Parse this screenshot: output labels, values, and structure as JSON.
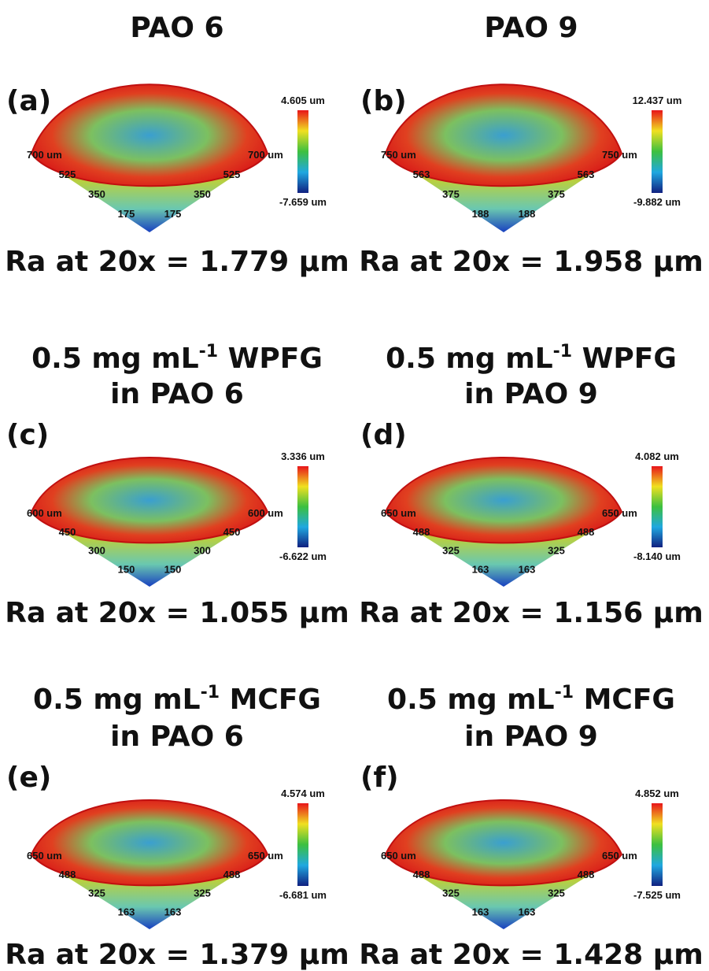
{
  "panels": [
    {
      "heading": {
        "main": "PAO 6"
      },
      "label": "(a)",
      "scale_max": "4.605 um",
      "scale_min": "-7.659 um",
      "axis_left": [
        "700 um",
        "525",
        "350",
        "175"
      ],
      "axis_right": [
        "700 um",
        "525",
        "350",
        "175"
      ],
      "ra": "Ra at 20x = 1.779 µm"
    },
    {
      "heading": {
        "main": "PAO 9"
      },
      "label": "(b)",
      "scale_max": "12.437 um",
      "scale_min": "-9.882 um",
      "axis_left": [
        "750 um",
        "563",
        "375",
        "188"
      ],
      "axis_right": [
        "750 um",
        "563",
        "375",
        "188"
      ],
      "ra": "Ra at 20x = 1.958 µm"
    },
    {
      "heading": {
        "main": "0.5 mg mL",
        "sup": "-1",
        "rest": " WPFG",
        "line2": "in PAO 6"
      },
      "label": "(c)",
      "scale_max": "3.336 um",
      "scale_min": "-6.622 um",
      "axis_left": [
        "600 um",
        "450",
        "300",
        "150"
      ],
      "axis_right": [
        "600 um",
        "450",
        "300",
        "150"
      ],
      "ra": "Ra at 20x = 1.055 µm"
    },
    {
      "heading": {
        "main": "0.5 mg mL",
        "sup": "-1",
        "rest": " WPFG",
        "line2": "in PAO 9"
      },
      "label": "(d)",
      "scale_max": "4.082 um",
      "scale_min": "-8.140 um",
      "axis_left": [
        "650 um",
        "488",
        "325",
        "163"
      ],
      "axis_right": [
        "650 um",
        "488",
        "325",
        "163"
      ],
      "ra": "Ra at 20x = 1.156 µm"
    },
    {
      "heading": {
        "main": "0.5 mg mL",
        "sup": "-1",
        "rest": " MCFG",
        "line2": "in PAO 6"
      },
      "label": "(e)",
      "scale_max": "4.574 um",
      "scale_min": "-6.681 um",
      "axis_left": [
        "650 um",
        "488",
        "325",
        "163"
      ],
      "axis_right": [
        "650 um",
        "488",
        "325",
        "163"
      ],
      "ra": "Ra at 20x = 1.379 µm"
    },
    {
      "heading": {
        "main": "0.5 mg mL",
        "sup": "-1",
        "rest": " MCFG",
        "line2": "in PAO 9"
      },
      "label": "(f)",
      "scale_max": "4.852 um",
      "scale_min": "-7.525 um",
      "axis_left": [
        "650 um",
        "488",
        "325",
        "163"
      ],
      "axis_right": [
        "650 um",
        "488",
        "325",
        "163"
      ],
      "ra": "Ra at 20x = 1.428 µm"
    }
  ]
}
